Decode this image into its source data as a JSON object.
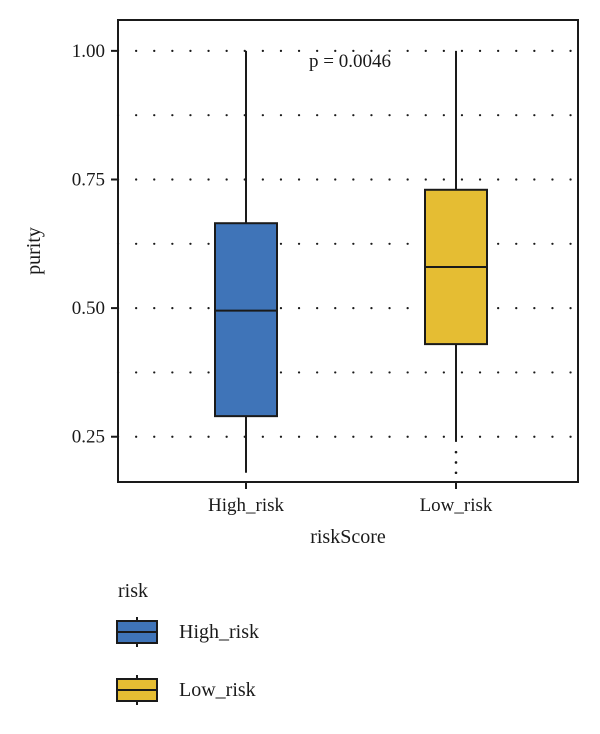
{
  "chart_data": {
    "type": "box",
    "xlabel": "riskScore",
    "ylabel": "purity",
    "ylim": [
      0.162,
      1.06
    ],
    "yticks": [
      0.25,
      0.5,
      0.75,
      1.0
    ],
    "ytick_labels": [
      "0.25",
      "0.50",
      "0.75",
      "1.00"
    ],
    "minor_gridlines": [
      0.375,
      0.625,
      0.875
    ],
    "grid": "dotted horizontal",
    "annotation": "p = 0.0046",
    "categories": [
      "High_risk",
      "Low_risk"
    ],
    "boxes": [
      {
        "category": "High_risk",
        "whisker_low": 0.18,
        "q1": 0.29,
        "median": 0.495,
        "q3": 0.665,
        "whisker_high": 1.0,
        "outliers": [],
        "color": "#3f74b8"
      },
      {
        "category": "Low_risk",
        "whisker_low": 0.24,
        "q1": 0.43,
        "median": 0.58,
        "q3": 0.73,
        "whisker_high": 1.0,
        "outliers": [
          0.18,
          0.2,
          0.22
        ],
        "color": "#e5bd33"
      }
    ],
    "legend": {
      "title": "risk",
      "position": "bottom-left",
      "items": [
        {
          "label": "High_risk",
          "color": "#3f74b8"
        },
        {
          "label": "Low_risk",
          "color": "#e5bd33"
        }
      ]
    }
  }
}
